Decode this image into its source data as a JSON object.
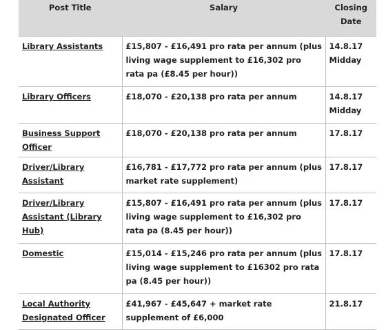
{
  "table": {
    "headers": {
      "post_title": "Post Title",
      "salary": "Salary",
      "closing_date": "Closing Date"
    },
    "rows": [
      {
        "post_title": "Library Assistants",
        "salary": "£15,807 - £16,491 pro rata per annum (plus living wage supplement to £16,302 pro rata pa (£8.45 per hour))",
        "closing_date": "14.8.17 Midday"
      },
      {
        "post_title": "Library Officers",
        "salary": "£18,070 - £20,138 pro rata per annum",
        "closing_date": "14.8.17 Midday"
      },
      {
        "post_title": "Business Support Officer",
        "salary": "£18,070 - £20,138 pro rata per annum",
        "closing_date": "17.8.17"
      },
      {
        "post_title": "Driver/Library Assistant",
        "salary": "£16,781 - £17,772 pro rata per annum (plus market rate supplement)",
        "closing_date": "17.8.17"
      },
      {
        "post_title": "Driver/Library Assistant (Library Hub)",
        "salary": "£15,807 - £16,491 pro rata per annum (plus living wage supplement to £16,302 pro rata pa (8.45 per hour))",
        "closing_date": "17.8.17"
      },
      {
        "post_title": "Domestic",
        "salary": "£15,014 - £15,246 pro rata per annum (plus living wage supplement to £16302 pro rata pa (8.45 per hour))",
        "closing_date": "17.8.17"
      },
      {
        "post_title": "Local Authority Designated Officer",
        "salary": "£41,967 - £45,647 + market rate supplement of £6,000",
        "closing_date": "21.8.17"
      }
    ]
  }
}
